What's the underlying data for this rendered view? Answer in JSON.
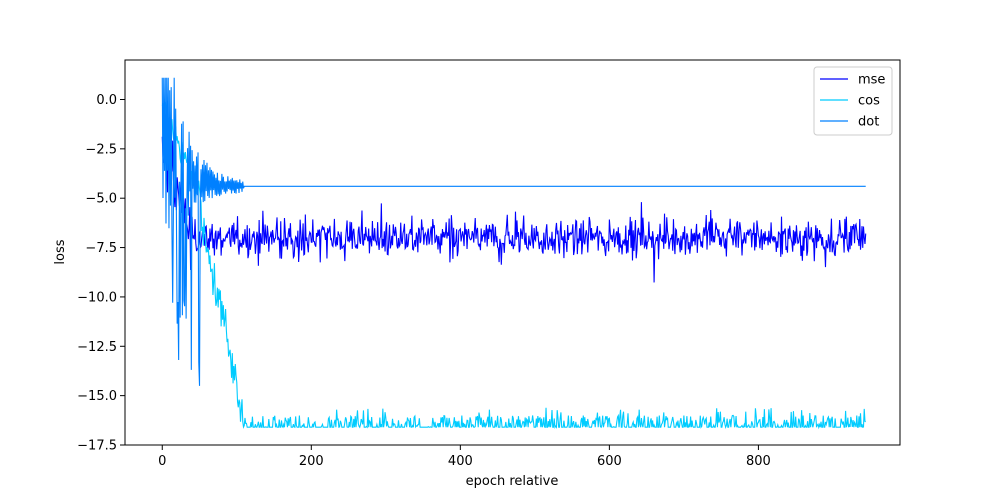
{
  "chart_data": {
    "type": "line",
    "xlabel": "epoch relative",
    "ylabel": "loss",
    "xlim": [
      -50,
      990
    ],
    "ylim": [
      -17.5,
      2.0
    ],
    "grid": false,
    "legend_placement": "top-right",
    "x_ticks": [
      {
        "value": 0,
        "label": "0"
      },
      {
        "value": 200,
        "label": "200"
      },
      {
        "value": 400,
        "label": "400"
      },
      {
        "value": 600,
        "label": "600"
      },
      {
        "value": 800,
        "label": "800"
      }
    ],
    "y_ticks": [
      {
        "value": 0.0,
        "label": "0.0"
      },
      {
        "value": -2.5,
        "label": "−2.5"
      },
      {
        "value": -5.0,
        "label": "−5.0"
      },
      {
        "value": -7.5,
        "label": "−7.5"
      },
      {
        "value": -10.0,
        "label": "−10.0"
      },
      {
        "value": -12.5,
        "label": "−12.5"
      },
      {
        "value": -15.0,
        "label": "−15.0"
      },
      {
        "value": -17.5,
        "label": "−17.5"
      }
    ],
    "series": [
      {
        "name": "mse",
        "color": "#0000ff",
        "n_points": 945,
        "description_summary": {
          "start": -2.5,
          "start_low": -9.0,
          "settle_from": 40,
          "steady_mean": -7.0,
          "steady_band": [
            -9.5,
            -5.3
          ]
        }
      },
      {
        "name": "cos",
        "color": "#00ccff",
        "n_points": 945,
        "description_summary": {
          "start": -0.5,
          "decline_from": 50,
          "decline_to": 110,
          "steady_floor": -16.6,
          "spikes_to": -15.5
        }
      },
      {
        "name": "dot",
        "color": "#0080ff",
        "n_points": 945,
        "description_summary": {
          "start": 1.0,
          "low_spikes_to": -15.3,
          "settle_by": 110,
          "steady_value": -4.4
        }
      }
    ]
  }
}
